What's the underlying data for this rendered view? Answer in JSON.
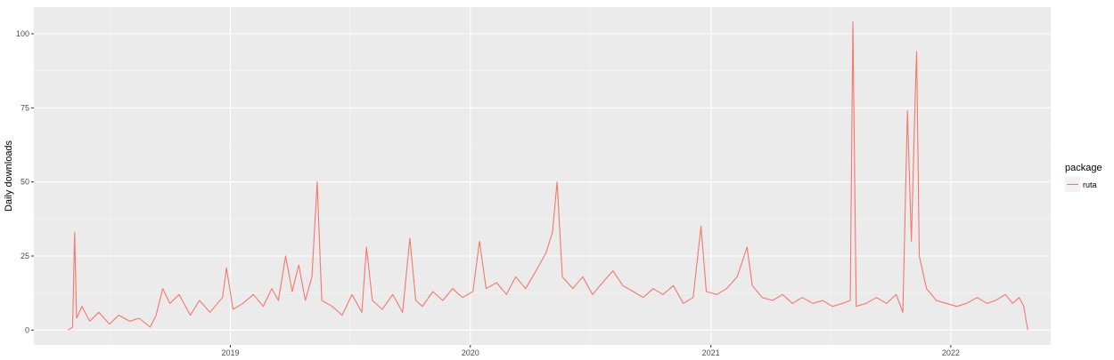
{
  "chart_data": {
    "type": "line",
    "title": "",
    "xlabel": "",
    "ylabel": "Daily downloads",
    "x_ticks": [
      "2019",
      "2020",
      "2021",
      "2022"
    ],
    "y_ticks": [
      "0",
      "25",
      "50",
      "75",
      "100"
    ],
    "xlim": [
      "2018-03-08",
      "2022-06-02"
    ],
    "ylim": [
      -5,
      109
    ],
    "grid": true,
    "legend": {
      "title": "package",
      "placement": "right"
    },
    "series": [
      {
        "name": "ruta",
        "color": "#F8766D",
        "points": [
          [
            "2018-04-29",
            0
          ],
          [
            "2018-05-06",
            1
          ],
          [
            "2018-05-09",
            33
          ],
          [
            "2018-05-12",
            4
          ],
          [
            "2018-05-20",
            8
          ],
          [
            "2018-06-01",
            3
          ],
          [
            "2018-06-15",
            6
          ],
          [
            "2018-07-01",
            2
          ],
          [
            "2018-07-15",
            5
          ],
          [
            "2018-08-01",
            3
          ],
          [
            "2018-08-15",
            4
          ],
          [
            "2018-09-01",
            1
          ],
          [
            "2018-09-10",
            5
          ],
          [
            "2018-09-20",
            14
          ],
          [
            "2018-10-01",
            9
          ],
          [
            "2018-10-15",
            12
          ],
          [
            "2018-11-01",
            5
          ],
          [
            "2018-11-15",
            10
          ],
          [
            "2018-12-01",
            6
          ],
          [
            "2018-12-20",
            11
          ],
          [
            "2018-12-26",
            21
          ],
          [
            "2019-01-05",
            7
          ],
          [
            "2019-01-20",
            9
          ],
          [
            "2019-02-05",
            12
          ],
          [
            "2019-02-20",
            8
          ],
          [
            "2019-03-05",
            14
          ],
          [
            "2019-03-15",
            10
          ],
          [
            "2019-03-26",
            25
          ],
          [
            "2019-04-05",
            13
          ],
          [
            "2019-04-15",
            22
          ],
          [
            "2019-04-25",
            10
          ],
          [
            "2019-05-05",
            18
          ],
          [
            "2019-05-13",
            50
          ],
          [
            "2019-05-20",
            10
          ],
          [
            "2019-06-05",
            8
          ],
          [
            "2019-06-20",
            5
          ],
          [
            "2019-07-05",
            12
          ],
          [
            "2019-07-20",
            6
          ],
          [
            "2019-07-27",
            28
          ],
          [
            "2019-08-05",
            10
          ],
          [
            "2019-08-20",
            7
          ],
          [
            "2019-09-05",
            12
          ],
          [
            "2019-09-20",
            6
          ],
          [
            "2019-10-01",
            31
          ],
          [
            "2019-10-10",
            10
          ],
          [
            "2019-10-20",
            8
          ],
          [
            "2019-11-05",
            13
          ],
          [
            "2019-11-20",
            10
          ],
          [
            "2019-12-05",
            14
          ],
          [
            "2019-12-20",
            11
          ],
          [
            "2020-01-05",
            13
          ],
          [
            "2020-01-15",
            30
          ],
          [
            "2020-01-25",
            14
          ],
          [
            "2020-02-10",
            16
          ],
          [
            "2020-02-25",
            12
          ],
          [
            "2020-03-10",
            18
          ],
          [
            "2020-03-25",
            14
          ],
          [
            "2020-04-10",
            20
          ],
          [
            "2020-04-25",
            26
          ],
          [
            "2020-05-05",
            33
          ],
          [
            "2020-05-12",
            50
          ],
          [
            "2020-05-20",
            18
          ],
          [
            "2020-06-05",
            14
          ],
          [
            "2020-06-20",
            18
          ],
          [
            "2020-07-05",
            12
          ],
          [
            "2020-07-20",
            16
          ],
          [
            "2020-08-05",
            20
          ],
          [
            "2020-08-20",
            15
          ],
          [
            "2020-09-05",
            13
          ],
          [
            "2020-09-20",
            11
          ],
          [
            "2020-10-05",
            14
          ],
          [
            "2020-10-20",
            12
          ],
          [
            "2020-11-05",
            15
          ],
          [
            "2020-11-20",
            9
          ],
          [
            "2020-12-05",
            11
          ],
          [
            "2020-12-17",
            35
          ],
          [
            "2020-12-25",
            13
          ],
          [
            "2021-01-10",
            12
          ],
          [
            "2021-01-25",
            14
          ],
          [
            "2021-02-10",
            18
          ],
          [
            "2021-02-25",
            28
          ],
          [
            "2021-03-05",
            15
          ],
          [
            "2021-03-20",
            11
          ],
          [
            "2021-04-05",
            10
          ],
          [
            "2021-04-20",
            12
          ],
          [
            "2021-05-05",
            9
          ],
          [
            "2021-05-20",
            11
          ],
          [
            "2021-06-05",
            9
          ],
          [
            "2021-06-20",
            10
          ],
          [
            "2021-07-05",
            8
          ],
          [
            "2021-07-20",
            9
          ],
          [
            "2021-08-01",
            10
          ],
          [
            "2021-08-05",
            104
          ],
          [
            "2021-08-10",
            8
          ],
          [
            "2021-08-25",
            9
          ],
          [
            "2021-09-10",
            11
          ],
          [
            "2021-09-25",
            9
          ],
          [
            "2021-10-10",
            12
          ],
          [
            "2021-10-20",
            6
          ],
          [
            "2021-10-27",
            74
          ],
          [
            "2021-11-02",
            30
          ],
          [
            "2021-11-08",
            80
          ],
          [
            "2021-11-10",
            94
          ],
          [
            "2021-11-14",
            25
          ],
          [
            "2021-11-25",
            14
          ],
          [
            "2021-12-10",
            10
          ],
          [
            "2021-12-25",
            9
          ],
          [
            "2022-01-10",
            8
          ],
          [
            "2022-01-25",
            9
          ],
          [
            "2022-02-10",
            11
          ],
          [
            "2022-02-25",
            9
          ],
          [
            "2022-03-10",
            10
          ],
          [
            "2022-03-25",
            12
          ],
          [
            "2022-04-05",
            9
          ],
          [
            "2022-04-15",
            11
          ],
          [
            "2022-04-22",
            8
          ],
          [
            "2022-04-28",
            0
          ]
        ]
      }
    ]
  }
}
